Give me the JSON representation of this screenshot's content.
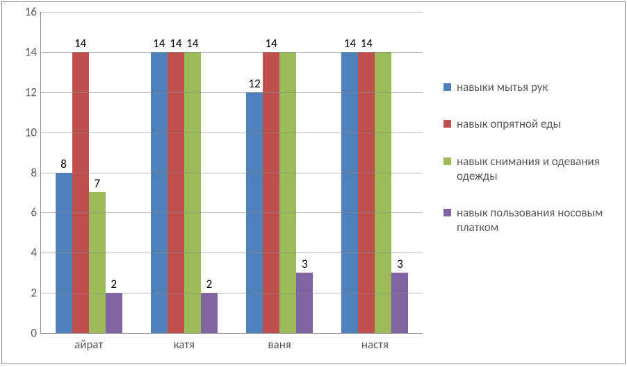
{
  "chart": {
    "type": "bar",
    "ylim": [
      0,
      16
    ],
    "ytick_step": 2,
    "yticks": [
      0,
      2,
      4,
      6,
      8,
      10,
      12,
      14,
      16
    ],
    "grid_color": "#888888",
    "axis_color": "#888888",
    "background_color": "#ffffff",
    "tick_label_color": "#595959",
    "bar_label_color": "#000000",
    "tick_fontsize": 17,
    "label_fontsize": 17,
    "legend_fontsize": 17,
    "bar_width_ratio": 0.175,
    "categories": [
      {
        "key": "c0",
        "label": "айрат"
      },
      {
        "key": "c1",
        "label": "катя"
      },
      {
        "key": "c2",
        "label": "ваня"
      },
      {
        "key": "c3",
        "label": "настя"
      }
    ],
    "series": [
      {
        "key": "s0",
        "label": "навыки мытья рук",
        "color": "#4f81bd",
        "values": [
          8,
          14,
          12,
          14
        ]
      },
      {
        "key": "s1",
        "label": "навык опрятной еды",
        "color": "#c0504d",
        "values": [
          14,
          14,
          14,
          14
        ]
      },
      {
        "key": "s2",
        "label": "навык снимания и одевания одежды",
        "color": "#9bbb59",
        "values": [
          7,
          14,
          14,
          14
        ]
      },
      {
        "key": "s3",
        "label": "навык пользования носовым платком",
        "color": "#8064a2",
        "values": [
          2,
          2,
          3,
          3
        ]
      }
    ],
    "skip_labels": [
      {
        "cat": 2,
        "series": 2
      },
      {
        "cat": 3,
        "series": 2
      }
    ]
  }
}
